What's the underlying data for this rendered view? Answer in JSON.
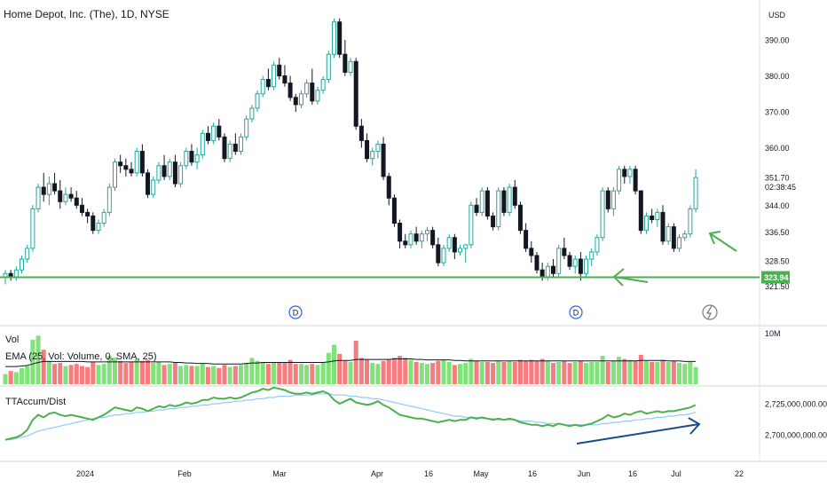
{
  "header": {
    "title": "Home Depot, Inc. (The), 1D, NYSE"
  },
  "price_axis": {
    "currency": "USD",
    "ticks": [
      "390.00",
      "380.00",
      "370.00",
      "360.00",
      "351.70",
      "344.00",
      "336.50",
      "328.50",
      "323.94",
      "321.50"
    ],
    "countdown": "02:38:45"
  },
  "volume_panel": {
    "label": "Vol",
    "ema_label": "EMA (25, Vol: Volume, 0, SMA, 25)",
    "axis_tick": "10M"
  },
  "accum_panel": {
    "label": "TTAccum/Dist",
    "axis_ticks": [
      "2,725,000,000.00",
      "2,700,000,000.00"
    ]
  },
  "time_axis": [
    "2024",
    "Feb",
    "Mar",
    "Apr",
    "16",
    "May",
    "16",
    "Jun",
    "16",
    "Jul",
    "22"
  ],
  "events": [
    "D",
    "D"
  ],
  "colors": {
    "up": "#26a69a",
    "down": "#131722",
    "support": "#4caf50",
    "vol_up": "#81e27a",
    "vol_down": "#f77c80",
    "accum": "#4caf50",
    "accum_ma": "#90caf9",
    "trend_arrow": "#1e4a8a",
    "label_bg": "#4caf50"
  },
  "chart_data": {
    "type": "candlestick",
    "symbol": "Home Depot, Inc. (The)",
    "interval": "1D",
    "exchange": "NYSE",
    "last_price": 351.7,
    "support_level": 323.94,
    "price_range": [
      318,
      398
    ],
    "candles": [
      [
        324,
        326,
        322,
        325
      ],
      [
        325,
        326,
        323,
        324
      ],
      [
        324,
        327,
        323,
        326
      ],
      [
        326,
        330,
        325,
        329
      ],
      [
        329,
        333,
        328,
        332
      ],
      [
        332,
        344,
        331,
        343
      ],
      [
        343,
        350,
        342,
        349
      ],
      [
        349,
        353,
        345,
        347
      ],
      [
        347,
        352,
        344,
        350
      ],
      [
        350,
        353,
        347,
        348
      ],
      [
        348,
        351,
        343,
        345
      ],
      [
        345,
        349,
        344,
        347
      ],
      [
        347,
        349,
        345,
        346
      ],
      [
        346,
        348,
        343,
        344
      ],
      [
        344,
        346,
        341,
        342
      ],
      [
        342,
        343,
        339,
        341
      ],
      [
        341,
        342,
        336,
        337
      ],
      [
        337,
        340,
        336,
        339
      ],
      [
        339,
        343,
        338,
        342
      ],
      [
        342,
        350,
        341,
        349
      ],
      [
        349,
        357,
        348,
        356
      ],
      [
        356,
        358,
        353,
        355
      ],
      [
        355,
        357,
        352,
        354
      ],
      [
        354,
        356,
        352,
        353
      ],
      [
        353,
        360,
        352,
        359
      ],
      [
        359,
        361,
        352,
        353
      ],
      [
        353,
        354,
        346,
        347
      ],
      [
        347,
        352,
        346,
        351
      ],
      [
        351,
        356,
        350,
        355
      ],
      [
        355,
        358,
        351,
        352
      ],
      [
        352,
        357,
        351,
        356
      ],
      [
        356,
        358,
        349,
        350
      ],
      [
        350,
        356,
        349,
        355
      ],
      [
        355,
        360,
        354,
        359
      ],
      [
        359,
        361,
        355,
        356
      ],
      [
        356,
        360,
        354,
        358
      ],
      [
        358,
        365,
        357,
        364
      ],
      [
        364,
        366,
        361,
        362
      ],
      [
        362,
        367,
        361,
        366
      ],
      [
        366,
        368,
        362,
        363
      ],
      [
        363,
        364,
        356,
        357
      ],
      [
        357,
        362,
        356,
        361
      ],
      [
        361,
        364,
        358,
        359
      ],
      [
        359,
        364,
        358,
        363
      ],
      [
        363,
        369,
        362,
        368
      ],
      [
        368,
        372,
        367,
        371
      ],
      [
        371,
        376,
        370,
        375
      ],
      [
        375,
        380,
        374,
        379
      ],
      [
        379,
        382,
        376,
        377
      ],
      [
        377,
        384,
        376,
        383
      ],
      [
        383,
        385,
        379,
        380
      ],
      [
        380,
        383,
        377,
        378
      ],
      [
        378,
        380,
        373,
        374
      ],
      [
        374,
        375,
        370,
        372
      ],
      [
        372,
        376,
        371,
        375
      ],
      [
        375,
        379,
        374,
        378
      ],
      [
        378,
        382,
        372,
        373
      ],
      [
        373,
        377,
        372,
        376
      ],
      [
        376,
        380,
        375,
        379
      ],
      [
        379,
        387,
        378,
        386
      ],
      [
        386,
        396,
        385,
        395
      ],
      [
        395,
        396,
        385,
        386
      ],
      [
        386,
        390,
        380,
        381
      ],
      [
        381,
        385,
        380,
        384
      ],
      [
        384,
        385,
        365,
        366
      ],
      [
        366,
        368,
        360,
        362
      ],
      [
        362,
        364,
        356,
        357
      ],
      [
        357,
        360,
        355,
        359
      ],
      [
        359,
        362,
        357,
        361
      ],
      [
        361,
        363,
        351,
        352
      ],
      [
        352,
        353,
        344,
        346
      ],
      [
        346,
        347,
        338,
        339
      ],
      [
        339,
        340,
        332,
        334
      ],
      [
        334,
        336,
        332,
        333
      ],
      [
        333,
        337,
        332,
        336
      ],
      [
        336,
        338,
        333,
        334
      ],
      [
        334,
        337,
        332,
        336
      ],
      [
        336,
        338,
        334,
        337
      ],
      [
        337,
        338,
        332,
        333
      ],
      [
        333,
        335,
        327,
        328
      ],
      [
        328,
        333,
        327,
        332
      ],
      [
        332,
        336,
        331,
        335
      ],
      [
        335,
        336,
        329,
        331
      ],
      [
        331,
        333,
        330,
        332
      ],
      [
        332,
        333,
        328,
        333
      ],
      [
        333,
        345,
        332,
        344
      ],
      [
        344,
        346,
        341,
        342
      ],
      [
        342,
        349,
        341,
        348
      ],
      [
        348,
        349,
        340,
        341
      ],
      [
        341,
        342,
        337,
        338
      ],
      [
        338,
        349,
        337,
        348
      ],
      [
        348,
        349,
        341,
        342
      ],
      [
        342,
        350,
        341,
        349
      ],
      [
        349,
        351,
        343,
        344
      ],
      [
        344,
        345,
        336,
        337
      ],
      [
        337,
        339,
        331,
        332
      ],
      [
        332,
        334,
        328,
        330
      ],
      [
        330,
        331,
        325,
        326
      ],
      [
        326,
        328,
        323,
        324
      ],
      [
        324,
        328,
        323,
        327
      ],
      [
        327,
        329,
        324,
        325
      ],
      [
        325,
        333,
        324,
        332
      ],
      [
        332,
        335,
        329,
        330
      ],
      [
        330,
        331,
        326,
        327
      ],
      [
        327,
        330,
        325,
        329
      ],
      [
        329,
        331,
        323,
        325
      ],
      [
        325,
        330,
        324,
        329
      ],
      [
        329,
        332,
        327,
        331
      ],
      [
        331,
        336,
        330,
        335
      ],
      [
        335,
        349,
        334,
        348
      ],
      [
        348,
        349,
        342,
        343
      ],
      [
        343,
        349,
        341,
        348
      ],
      [
        348,
        355,
        347,
        354
      ],
      [
        354,
        355,
        350,
        352
      ],
      [
        352,
        355,
        350,
        354
      ],
      [
        354,
        355,
        347,
        348
      ],
      [
        348,
        348,
        336,
        337
      ],
      [
        337,
        342,
        336,
        341
      ],
      [
        341,
        343,
        339,
        340
      ],
      [
        340,
        343,
        338,
        342
      ],
      [
        342,
        344,
        333,
        334
      ],
      [
        334,
        339,
        333,
        338
      ],
      [
        338,
        339,
        331,
        332
      ],
      [
        332,
        336,
        331,
        335
      ],
      [
        335,
        337,
        334,
        336
      ],
      [
        336,
        344,
        335,
        343
      ],
      [
        343,
        354,
        342,
        351.7
      ]
    ],
    "volume": [
      2.0,
      2.6,
      2.4,
      3.2,
      3.6,
      8.8,
      9.6,
      6.8,
      4.6,
      4.0,
      4.2,
      3.6,
      3.8,
      4.0,
      3.6,
      3.4,
      4.4,
      3.8,
      4.0,
      5.6,
      5.2,
      4.6,
      4.2,
      4.4,
      5.0,
      4.6,
      4.8,
      4.2,
      4.4,
      3.8,
      4.0,
      4.2,
      3.6,
      3.8,
      3.6,
      3.6,
      4.0,
      3.4,
      3.6,
      3.2,
      3.8,
      3.4,
      3.6,
      3.8,
      4.2,
      5.2,
      4.6,
      4.4,
      4.0,
      4.2,
      4.4,
      4.2,
      4.8,
      4.0,
      4.0,
      3.8,
      4.0,
      3.8,
      4.4,
      6.2,
      7.8,
      6.0,
      4.6,
      4.4,
      8.6,
      5.2,
      4.8,
      4.2,
      4.0,
      4.6,
      5.0,
      5.2,
      5.6,
      5.2,
      4.8,
      4.4,
      4.2,
      4.0,
      4.2,
      4.6,
      4.8,
      4.4,
      3.8,
      4.0,
      4.2,
      5.0,
      4.6,
      4.4,
      4.4,
      4.2,
      4.6,
      4.4,
      4.6,
      4.4,
      4.8,
      4.6,
      4.8,
      4.6,
      5.0,
      4.6,
      4.2,
      4.4,
      4.6,
      4.2,
      4.4,
      4.6,
      4.2,
      4.4,
      4.4,
      5.6,
      4.4,
      4.6,
      5.4,
      5.0,
      4.8,
      4.6,
      5.8,
      4.6,
      4.4,
      4.4,
      4.8,
      4.4,
      4.6,
      4.2,
      4.0,
      4.4,
      3.4
    ],
    "volume_ema": [
      3.5,
      3.5,
      3.5,
      3.6,
      3.7,
      4.0,
      4.3,
      4.5,
      4.5,
      4.5,
      4.5,
      4.5,
      4.5,
      4.5,
      4.5,
      4.4,
      4.4,
      4.4,
      4.4,
      4.4,
      4.4,
      4.4,
      4.4,
      4.4,
      4.4,
      4.4,
      4.4,
      4.4,
      4.4,
      4.4,
      4.4,
      4.3,
      4.3,
      4.2,
      4.2,
      4.1,
      4.1,
      4.1,
      4.0,
      4.0,
      4.0,
      4.0,
      4.0,
      4.0,
      4.1,
      4.2,
      4.2,
      4.3,
      4.3,
      4.3,
      4.3,
      4.3,
      4.3,
      4.3,
      4.3,
      4.3,
      4.3,
      4.3,
      4.3,
      4.4,
      4.6,
      4.7,
      4.7,
      4.7,
      4.9,
      4.9,
      4.9,
      4.9,
      4.9,
      4.9,
      4.9,
      5.0,
      5.0,
      5.0,
      5.0,
      4.9,
      4.9,
      4.8,
      4.8,
      4.8,
      4.8,
      4.8,
      4.7,
      4.7,
      4.6,
      4.6,
      4.6,
      4.6,
      4.6,
      4.6,
      4.6,
      4.6,
      4.6,
      4.6,
      4.6,
      4.6,
      4.6,
      4.6,
      4.6,
      4.6,
      4.6,
      4.6,
      4.6,
      4.6,
      4.6,
      4.6,
      4.6,
      4.6,
      4.6,
      4.6,
      4.6,
      4.6,
      4.6,
      4.6,
      4.6,
      4.6,
      4.7,
      4.7,
      4.7,
      4.7,
      4.7,
      4.6,
      4.6,
      4.6,
      4.5,
      4.5,
      4.5
    ],
    "volume_axis": {
      "ticks": [
        10
      ],
      "unit": "M"
    },
    "accum_dist": [
      2696,
      2697,
      2698,
      2700,
      2704,
      2712,
      2716,
      2714,
      2717,
      2718,
      2716,
      2715,
      2716,
      2715,
      2714,
      2713,
      2712,
      2714,
      2716,
      2719,
      2722,
      2721,
      2720,
      2719,
      2722,
      2721,
      2719,
      2721,
      2723,
      2722,
      2724,
      2723,
      2724,
      2726,
      2725,
      2726,
      2728,
      2728,
      2730,
      2729,
      2729,
      2730,
      2729,
      2730,
      2732,
      2734,
      2735,
      2737,
      2736,
      2738,
      2737,
      2736,
      2734,
      2733,
      2733,
      2734,
      2733,
      2734,
      2735,
      2733,
      2728,
      2725,
      2727,
      2729,
      2726,
      2725,
      2724,
      2725,
      2727,
      2724,
      2722,
      2719,
      2716,
      2715,
      2714,
      2713,
      2713,
      2712,
      2711,
      2710,
      2711,
      2712,
      2711,
      2712,
      2712,
      2714,
      2713,
      2714,
      2713,
      2712,
      2713,
      2712,
      2713,
      2712,
      2710,
      2709,
      2708,
      2708,
      2707,
      2708,
      2707,
      2709,
      2708,
      2707,
      2708,
      2707,
      2708,
      2709,
      2711,
      2713,
      2716,
      2714,
      2715,
      2717,
      2716,
      2718,
      2719,
      2717,
      2718,
      2719,
      2718,
      2719,
      2719,
      2720,
      2721,
      2722,
      2724
    ],
    "accum_ma": [
      2696,
      2696,
      2697,
      2698,
      2699,
      2701,
      2703,
      2704,
      2705,
      2706,
      2707,
      2708,
      2709,
      2710,
      2711,
      2712,
      2713,
      2714,
      2714,
      2715,
      2716,
      2716,
      2717,
      2717,
      2718,
      2718,
      2719,
      2719,
      2720,
      2720,
      2721,
      2721,
      2722,
      2722,
      2723,
      2723,
      2724,
      2724,
      2725,
      2725,
      2726,
      2726,
      2727,
      2727,
      2728,
      2728,
      2729,
      2729,
      2730,
      2730,
      2731,
      2731,
      2731,
      2732,
      2732,
      2732,
      2732,
      2733,
      2733,
      2733,
      2732,
      2732,
      2732,
      2731,
      2731,
      2730,
      2730,
      2729,
      2729,
      2728,
      2727,
      2726,
      2725,
      2724,
      2723,
      2722,
      2721,
      2720,
      2719,
      2718,
      2717,
      2716,
      2715,
      2715,
      2714,
      2714,
      2714,
      2713,
      2713,
      2713,
      2712,
      2712,
      2712,
      2712,
      2711,
      2711,
      2711,
      2710,
      2710,
      2709,
      2709,
      2709,
      2708,
      2708,
      2708,
      2708,
      2708,
      2708,
      2708,
      2709,
      2709,
      2710,
      2710,
      2711,
      2711,
      2712,
      2712,
      2713,
      2713,
      2714,
      2714,
      2715,
      2715,
      2716,
      2716,
      2717,
      2718
    ],
    "accum_axis": {
      "ticks": [
        2725000000,
        2700000000
      ]
    },
    "x_labels": [
      "2024",
      "Feb",
      "Mar",
      "Apr",
      "16",
      "May",
      "16",
      "Jun",
      "16",
      "Jul",
      "22"
    ]
  }
}
